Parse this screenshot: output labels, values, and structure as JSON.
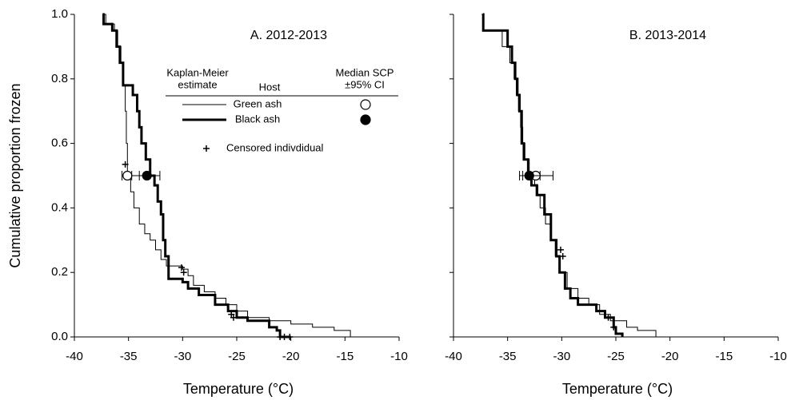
{
  "chart_data": [
    {
      "type": "line",
      "title": "A. 2012-2013",
      "x_label": "Temperature (°C)",
      "y_label": "Cumulative proportion frozen",
      "step": "post",
      "legend": true,
      "legend_headers": [
        [
          "Kaplan-Meier",
          "estimate"
        ],
        [
          "Host"
        ],
        [
          "Median SCP",
          "±95% CI"
        ]
      ],
      "xlim": [
        -40,
        -10
      ],
      "xticks": [
        -40,
        -35,
        -30,
        -25,
        -20,
        -15,
        -10
      ],
      "ylim": [
        0,
        1
      ],
      "yticks": [
        {
          "value": 0,
          "label": "0.0"
        },
        {
          "value": 0.2,
          "label": "0.2"
        },
        {
          "value": 0.4,
          "label": "0.4"
        },
        {
          "value": 0.6,
          "label": "0.6"
        },
        {
          "value": 0.8,
          "label": "0.8"
        },
        {
          "value": 1,
          "label": "1.0"
        }
      ],
      "series": [
        {
          "name": "Green ash",
          "color": "#000000",
          "width": 1,
          "marker_fill": "#ffffff",
          "x": [
            -37.3,
            -37.1,
            -36.3,
            -36.0,
            -35.7,
            -35.5,
            -35.3,
            -35.2,
            -35.1,
            -34.8,
            -34.5,
            -34.0,
            -33.5,
            -33.0,
            -32.5,
            -32.0,
            -31.5,
            -30.0,
            -29.5,
            -29.0,
            -28.0,
            -27.0,
            -26.0,
            -25.0,
            -24.0,
            -22.0,
            -20.0,
            -18.0,
            -16.0,
            -14.5
          ],
          "values": [
            1.0,
            0.97,
            0.95,
            0.9,
            0.85,
            0.78,
            0.7,
            0.6,
            0.5,
            0.45,
            0.4,
            0.35,
            0.32,
            0.3,
            0.27,
            0.24,
            0.22,
            0.21,
            0.19,
            0.16,
            0.14,
            0.12,
            0.1,
            0.08,
            0.06,
            0.05,
            0.04,
            0.03,
            0.02,
            0.0
          ],
          "median": {
            "x": -35.1,
            "y": 0.5,
            "ci": [
              -35.6,
              -34.0
            ]
          }
        },
        {
          "name": "Black ash",
          "color": "#000000",
          "width": 3,
          "marker_fill": "#000000",
          "x": [
            -37.4,
            -37.3,
            -36.5,
            -36.1,
            -35.8,
            -35.5,
            -34.6,
            -34.2,
            -34.0,
            -33.8,
            -33.4,
            -33.0,
            -32.6,
            -32.3,
            -32.0,
            -31.8,
            -31.6,
            -31.3,
            -30.0,
            -29.5,
            -28.5,
            -27.0,
            -25.8,
            -25.0,
            -24.0,
            -22.0,
            -21.3,
            -21.0,
            -20.0
          ],
          "values": [
            1.0,
            0.97,
            0.95,
            0.9,
            0.85,
            0.78,
            0.75,
            0.7,
            0.65,
            0.6,
            0.55,
            0.5,
            0.47,
            0.42,
            0.38,
            0.3,
            0.25,
            0.18,
            0.17,
            0.15,
            0.13,
            0.1,
            0.08,
            0.06,
            0.05,
            0.03,
            0.02,
            0.0,
            0.0
          ],
          "median": {
            "x": -33.3,
            "y": 0.5,
            "ci": [
              -34.7,
              -32.1
            ]
          }
        }
      ],
      "censored": {
        "label": "Censored indivdidual",
        "x": [
          -35.3,
          -30.1,
          -29.9,
          -25.5,
          -25.3,
          -21.0,
          -20.6,
          -20.1
        ],
        "values": [
          0.535,
          0.215,
          0.2,
          0.07,
          0.06,
          0.0,
          0.0,
          0.0
        ]
      }
    },
    {
      "type": "line",
      "title": "B. 2013-2014",
      "x_label": "Temperature (°C)",
      "step": "post",
      "legend": false,
      "xlim": [
        -40,
        -10
      ],
      "xticks": [
        -40,
        -35,
        -30,
        -25,
        -20,
        -15,
        -10
      ],
      "ylim": [
        0,
        1
      ],
      "yticks": [
        0,
        0.2,
        0.4,
        0.6,
        0.8,
        1
      ],
      "series": [
        {
          "color": "#000000",
          "width": 1,
          "marker_fill": "#ffffff",
          "x": [
            -37.4,
            -37.3,
            -35.5,
            -34.8,
            -34.4,
            -34.2,
            -34.0,
            -33.8,
            -33.6,
            -33.4,
            -33.0,
            -32.5,
            -32.2,
            -32.0,
            -31.5,
            -31.0,
            -30.6,
            -30.2,
            -29.5,
            -28.5,
            -27.5,
            -26.5,
            -25.5,
            -24.0,
            -23.0,
            -21.3
          ],
          "values": [
            1.0,
            0.95,
            0.9,
            0.85,
            0.8,
            0.75,
            0.7,
            0.65,
            0.6,
            0.55,
            0.5,
            0.47,
            0.44,
            0.4,
            0.35,
            0.3,
            0.25,
            0.2,
            0.15,
            0.12,
            0.1,
            0.07,
            0.05,
            0.03,
            0.02,
            0.0
          ],
          "median": {
            "x": -32.4,
            "y": 0.5,
            "ci": [
              -33.6,
              -30.8
            ]
          }
        },
        {
          "color": "#000000",
          "width": 3,
          "marker_fill": "#000000",
          "x": [
            -37.3,
            -37.25,
            -35.0,
            -34.6,
            -34.3,
            -34.1,
            -33.9,
            -33.7,
            -33.5,
            -33.1,
            -32.8,
            -32.3,
            -31.6,
            -31.0,
            -30.5,
            -30.2,
            -29.7,
            -29.2,
            -28.5,
            -26.8,
            -26.0,
            -25.2,
            -25.0,
            -24.4
          ],
          "values": [
            1.0,
            0.95,
            0.9,
            0.85,
            0.8,
            0.75,
            0.7,
            0.6,
            0.55,
            0.5,
            0.47,
            0.44,
            0.38,
            0.3,
            0.25,
            0.2,
            0.15,
            0.12,
            0.1,
            0.08,
            0.06,
            0.03,
            0.01,
            0.0
          ],
          "median": {
            "x": -33.0,
            "y": 0.5,
            "ci": [
              -33.9,
              -32.0
            ]
          }
        }
      ],
      "censored": {
        "x": [
          -30.1,
          -29.9,
          -25.7,
          -25.2
        ],
        "values": [
          0.27,
          0.25,
          0.06,
          0.03
        ]
      }
    }
  ]
}
